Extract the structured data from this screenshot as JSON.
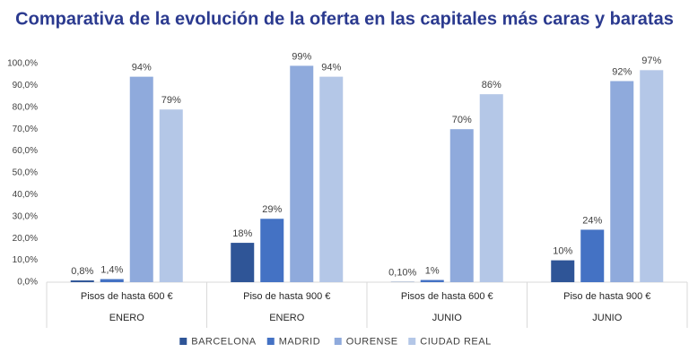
{
  "chart_data": {
    "type": "bar",
    "title": "Comparativa de la evolución de la oferta en las capitales más caras y baratas",
    "categories": [
      "Pisos de hasta 600 €",
      "Piso de hasta 900 €",
      "Pisos de hasta 600 €",
      "Piso de hasta 900 €"
    ],
    "groups": [
      "ENERO",
      "ENERO",
      "JUNIO",
      "JUNIO"
    ],
    "series": [
      {
        "name": "BARCELONA",
        "color": "#2f5597",
        "values": [
          0.8,
          18,
          0.1,
          10
        ],
        "value_labels": [
          "0,8%",
          "18%",
          "0,10%",
          "10%"
        ]
      },
      {
        "name": "MADRID",
        "color": "#4472c4",
        "values": [
          1.4,
          29,
          1,
          24
        ],
        "value_labels": [
          "1,4%",
          "29%",
          "1%",
          "24%"
        ]
      },
      {
        "name": "OURENSE",
        "color": "#8faadc",
        "values": [
          94,
          99,
          70,
          92
        ],
        "value_labels": [
          "94%",
          "99%",
          "70%",
          "92%"
        ]
      },
      {
        "name": "CIUDAD REAL",
        "color": "#b4c7e7",
        "values": [
          79,
          94,
          86,
          97
        ],
        "value_labels": [
          "79%",
          "94%",
          "86%",
          "97%"
        ]
      }
    ],
    "ylim": [
      0,
      100
    ],
    "yticks": [
      {
        "value": 0,
        "label": "0,0%"
      },
      {
        "value": 10,
        "label": "10,0%"
      },
      {
        "value": 20,
        "label": "20,0%"
      },
      {
        "value": 30,
        "label": "30,0%"
      },
      {
        "value": 40,
        "label": "40,0%"
      },
      {
        "value": 50,
        "label": "50,0%"
      },
      {
        "value": 60,
        "label": "60,0%"
      },
      {
        "value": 70,
        "label": "70,0%"
      },
      {
        "value": 80,
        "label": "80,0%"
      },
      {
        "value": 90,
        "label": "90,0%"
      },
      {
        "value": 100,
        "label": "100,0%"
      }
    ],
    "grid": false
  }
}
